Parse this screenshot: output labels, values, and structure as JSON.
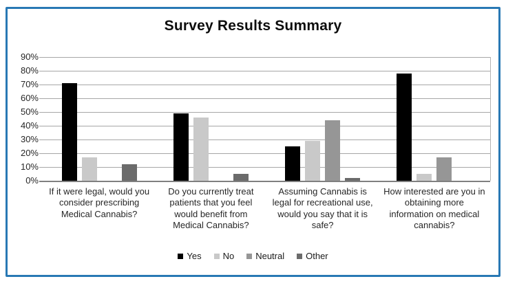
{
  "chart_data": {
    "type": "bar",
    "title": "Survey Results Summary",
    "categories": [
      "If it were legal, would you consider prescribing Medical Cannabis?",
      "Do you currently treat patients that you feel would benefit from Medical Cannabis?",
      "Assuming Cannabis is legal for recreational use, would you say that it is safe?",
      "How interested are you in obtaining more information on medical cannabis?"
    ],
    "series": [
      {
        "name": "Yes",
        "color": "#000000",
        "values": [
          71,
          49,
          25,
          78
        ]
      },
      {
        "name": "No",
        "color": "#c9c9c9",
        "values": [
          17,
          46,
          29,
          5
        ]
      },
      {
        "name": "Neutral",
        "color": "#969696",
        "values": [
          0,
          0,
          44,
          17
        ]
      },
      {
        "name": "Other",
        "color": "#6b6b6b",
        "values": [
          12,
          5,
          2,
          0
        ]
      }
    ],
    "ylabel": "",
    "xlabel": "",
    "ylim": [
      0,
      90
    ],
    "ytick_labels_top_to_bottom": [
      "90%",
      "80%",
      "70%",
      "60%",
      "50%",
      "40%",
      "30%",
      "20%",
      "10%",
      "0%"
    ],
    "grid": true,
    "legend_position": "bottom"
  },
  "colors": {
    "frame_border": "#2878b4",
    "gridline": "#a6a6a6",
    "axis_line": "#7f7f7f",
    "text": "#262626"
  }
}
